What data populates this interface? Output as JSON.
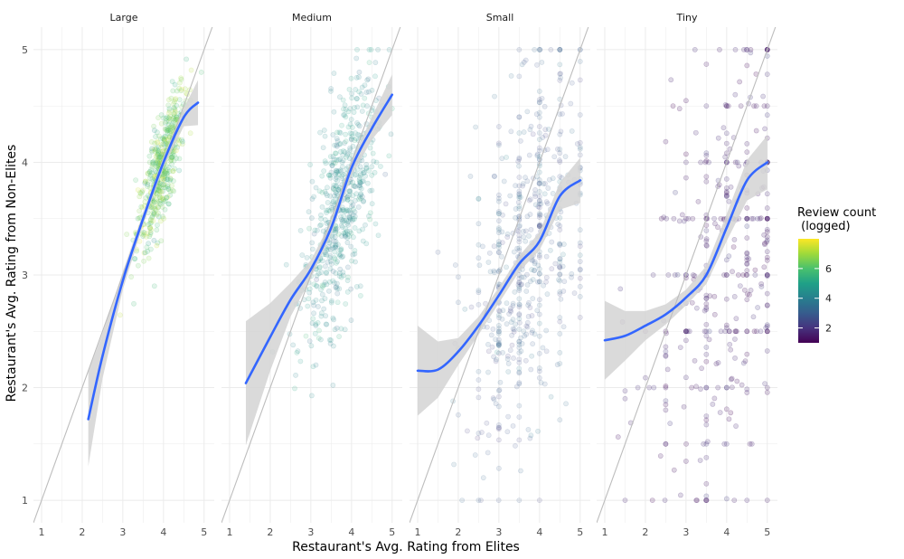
{
  "chart_data": {
    "type": "scatter",
    "xlabel": "Restaurant's Avg. Rating from Elites",
    "ylabel": "Restaurant's Avg. Rating from Non-Elites",
    "xlim": [
      0.8,
      5.25
    ],
    "ylim": [
      0.8,
      5.2
    ],
    "x_ticks": [
      1,
      2,
      3,
      4,
      5
    ],
    "y_ticks": [
      1,
      2,
      3,
      4,
      5
    ],
    "grid": true,
    "reference_line": {
      "slope": 1,
      "intercept": 0,
      "color": "#bdbdbd"
    },
    "smooth_color": "#3366ff",
    "ribbon_color": "#d3d3d3",
    "legend": {
      "title_line1": "Review count",
      "title_line2": " (logged)",
      "placement": "right",
      "ticks": [
        2,
        4,
        6
      ],
      "range": [
        1,
        8
      ],
      "colors": [
        "#440154",
        "#46337e",
        "#365c8d",
        "#277f8e",
        "#1fa187",
        "#4ac16d",
        "#9fda3a",
        "#fde725"
      ]
    },
    "panels": [
      {
        "name": "Large",
        "x_range": [
          2.1,
          4.85
        ],
        "smooth": [
          [
            2.15,
            1.72
          ],
          [
            2.5,
            2.28
          ],
          [
            3.0,
            2.95
          ],
          [
            3.5,
            3.5
          ],
          [
            4.0,
            4.0
          ],
          [
            4.5,
            4.4
          ],
          [
            4.85,
            4.53
          ]
        ],
        "ribbon_halfwidth": [
          0.42,
          0.2,
          0.08,
          0.05,
          0.05,
          0.08,
          0.2
        ],
        "points": {
          "count": 520,
          "x_mean": 3.95,
          "x_sd": 0.3,
          "slope": 0.95,
          "noise": 0.22,
          "color_mean": 6.3,
          "color_sd": 0.7,
          "alpha": 0.15
        }
      },
      {
        "name": "Medium",
        "x_range": [
          1.4,
          5.0
        ],
        "smooth": [
          [
            1.4,
            2.04
          ],
          [
            2.0,
            2.45
          ],
          [
            2.5,
            2.78
          ],
          [
            3.0,
            3.05
          ],
          [
            3.5,
            3.42
          ],
          [
            4.0,
            3.95
          ],
          [
            4.5,
            4.3
          ],
          [
            5.0,
            4.6
          ]
        ],
        "ribbon_halfwidth": [
          0.55,
          0.3,
          0.15,
          0.08,
          0.06,
          0.07,
          0.1,
          0.18
        ],
        "points": {
          "count": 600,
          "x_mean": 3.75,
          "x_sd": 0.45,
          "slope": 0.8,
          "noise": 0.45,
          "color_mean": 4.4,
          "color_sd": 0.5,
          "alpha": 0.13
        }
      },
      {
        "name": "Small",
        "x_range": [
          1.0,
          5.0
        ],
        "smooth": [
          [
            1.0,
            2.15
          ],
          [
            1.5,
            2.16
          ],
          [
            2.0,
            2.32
          ],
          [
            2.5,
            2.55
          ],
          [
            3.0,
            2.82
          ],
          [
            3.5,
            3.1
          ],
          [
            4.0,
            3.3
          ],
          [
            4.5,
            3.7
          ],
          [
            5.0,
            3.84
          ]
        ],
        "ribbon_halfwidth": [
          0.4,
          0.25,
          0.12,
          0.08,
          0.07,
          0.07,
          0.08,
          0.12,
          0.2
        ],
        "points": {
          "count": 560,
          "x_mean": 3.7,
          "x_sd": 0.7,
          "slope": 0.55,
          "noise": 0.75,
          "color_mean": 3.0,
          "color_sd": 0.4,
          "alpha": 0.12
        }
      },
      {
        "name": "Tiny",
        "x_range": [
          1.0,
          5.0
        ],
        "smooth": [
          [
            1.0,
            2.42
          ],
          [
            1.5,
            2.46
          ],
          [
            2.0,
            2.55
          ],
          [
            2.5,
            2.65
          ],
          [
            3.0,
            2.8
          ],
          [
            3.5,
            3.0
          ],
          [
            4.0,
            3.42
          ],
          [
            4.5,
            3.84
          ],
          [
            5.0,
            4.0
          ]
        ],
        "ribbon_halfwidth": [
          0.35,
          0.22,
          0.13,
          0.09,
          0.07,
          0.08,
          0.12,
          0.18,
          0.24
        ],
        "points": {
          "count": 380,
          "x_mean": 3.9,
          "x_sd": 0.9,
          "slope": 0.4,
          "noise": 0.95,
          "color_mean": 1.6,
          "color_sd": 0.3,
          "alpha": 0.18
        }
      }
    ]
  }
}
